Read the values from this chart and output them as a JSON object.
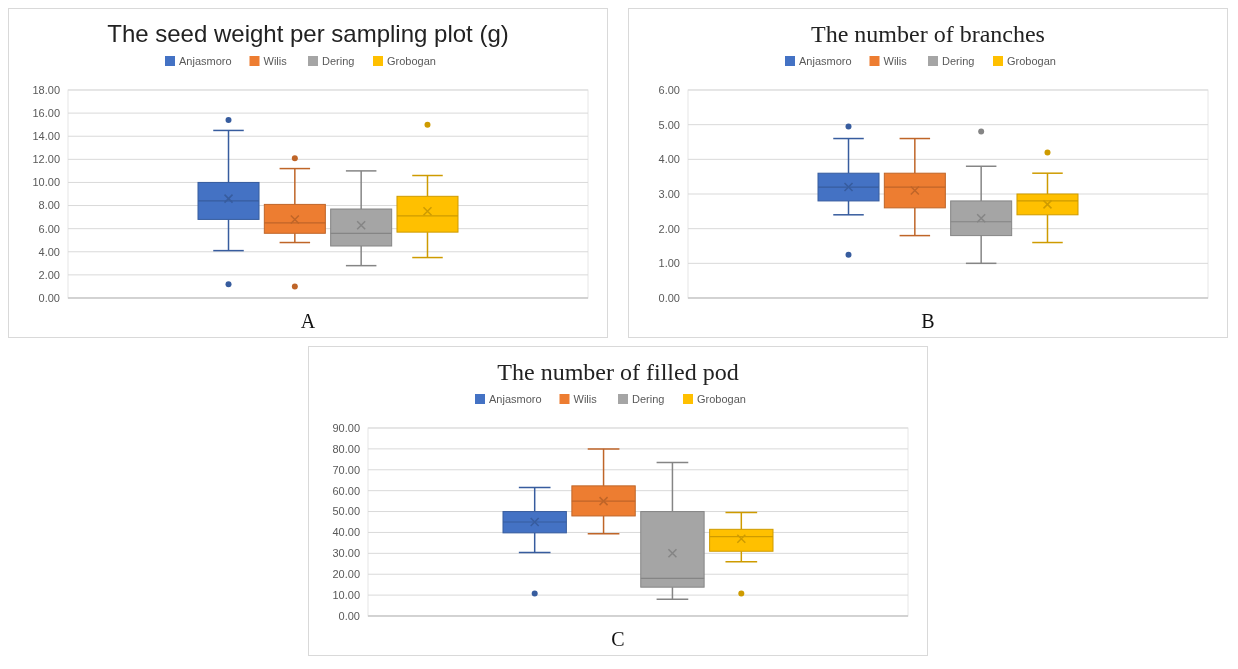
{
  "chart_data": [
    {
      "type": "box",
      "title": "The seed weight per sampling plot (g)",
      "categories": [
        null
      ],
      "legend": "top",
      "grid": "y",
      "ylim": [
        0,
        18
      ],
      "yticks": [
        {
          "value": 0,
          "label": "0.00"
        },
        {
          "value": 2,
          "label": "2.00"
        },
        {
          "value": 4,
          "label": "4.00"
        },
        {
          "value": 6,
          "label": "6.00"
        },
        {
          "value": 8,
          "label": "8.00"
        },
        {
          "value": 10,
          "label": "10.00"
        },
        {
          "value": 12,
          "label": "12.00"
        },
        {
          "value": 14,
          "label": "14.00"
        },
        {
          "value": 16,
          "label": "16.00"
        },
        {
          "value": 18,
          "label": "18.00"
        }
      ],
      "annotations": [
        "A"
      ],
      "series": [
        {
          "name": "Anjasmoro",
          "color": "#4472c4",
          "boxes": [
            {
              "low": 4.1,
              "q1": 6.8,
              "median": 8.4,
              "q3": 10.0,
              "high": 14.5,
              "mean": 8.6,
              "outliers": [
                15.4,
                1.2
              ]
            }
          ]
        },
        {
          "name": "Wilis",
          "color": "#ed7d31",
          "boxes": [
            {
              "low": 4.8,
              "q1": 5.6,
              "median": 6.5,
              "q3": 8.1,
              "high": 11.2,
              "mean": 6.8,
              "outliers": [
                12.1,
                1.0
              ]
            }
          ]
        },
        {
          "name": "Dering",
          "color": "#a5a5a5",
          "boxes": [
            {
              "low": 2.8,
              "q1": 4.5,
              "median": 5.6,
              "q3": 7.7,
              "high": 11.0,
              "mean": 6.3
            }
          ]
        },
        {
          "name": "Grobogan",
          "color": "#ffc000",
          "boxes": [
            {
              "low": 3.5,
              "q1": 5.7,
              "median": 7.1,
              "q3": 8.8,
              "high": 10.6,
              "mean": 7.5,
              "outliers": [
                15.0
              ]
            }
          ]
        }
      ]
    },
    {
      "type": "box",
      "title": "The number of branches",
      "categories": [
        null
      ],
      "legend": "top",
      "grid": "y",
      "ylim": [
        0,
        6
      ],
      "yticks": [
        {
          "value": 0,
          "label": "0.00"
        },
        {
          "value": 1,
          "label": "1.00"
        },
        {
          "value": 2,
          "label": "2.00"
        },
        {
          "value": 3,
          "label": "3.00"
        },
        {
          "value": 4,
          "label": "4.00"
        },
        {
          "value": 5,
          "label": "5.00"
        },
        {
          "value": 6,
          "label": "6.00"
        }
      ],
      "annotations": [
        "B"
      ],
      "series": [
        {
          "name": "Anjasmoro",
          "color": "#4472c4",
          "boxes": [
            {
              "low": 2.4,
              "q1": 2.8,
              "median": 3.2,
              "q3": 3.6,
              "high": 4.6,
              "mean": 3.2,
              "outliers": [
                4.95,
                1.25
              ]
            }
          ]
        },
        {
          "name": "Wilis",
          "color": "#ed7d31",
          "boxes": [
            {
              "low": 1.8,
              "q1": 2.6,
              "median": 3.2,
              "q3": 3.6,
              "high": 4.6,
              "mean": 3.1
            }
          ]
        },
        {
          "name": "Dering",
          "color": "#a5a5a5",
          "boxes": [
            {
              "low": 1.0,
              "q1": 1.8,
              "median": 2.2,
              "q3": 2.8,
              "high": 3.8,
              "mean": 2.3,
              "outliers": [
                4.8
              ]
            }
          ]
        },
        {
          "name": "Grobogan",
          "color": "#ffc000",
          "boxes": [
            {
              "low": 1.6,
              "q1": 2.4,
              "median": 2.8,
              "q3": 3.0,
              "high": 3.6,
              "mean": 2.7,
              "outliers": [
                4.2
              ]
            }
          ]
        }
      ]
    },
    {
      "type": "box",
      "title": "The number of filled pod",
      "categories": [
        null
      ],
      "legend": "top",
      "grid": "y",
      "ylim": [
        0,
        90
      ],
      "yticks": [
        {
          "value": 0,
          "label": "0.00"
        },
        {
          "value": 10,
          "label": "10.00"
        },
        {
          "value": 20,
          "label": "20.00"
        },
        {
          "value": 30,
          "label": "30.00"
        },
        {
          "value": 40,
          "label": "40.00"
        },
        {
          "value": 50,
          "label": "50.00"
        },
        {
          "value": 60,
          "label": "60.00"
        },
        {
          "value": 70,
          "label": "70.00"
        },
        {
          "value": 80,
          "label": "80.00"
        },
        {
          "value": 90,
          "label": "90.00"
        }
      ],
      "annotations": [
        "C"
      ],
      "series": [
        {
          "name": "Anjasmoro",
          "color": "#4472c4",
          "boxes": [
            {
              "low": 30.4,
              "q1": 39.8,
              "median": 45,
              "q3": 50,
              "high": 61.5,
              "mean": 45,
              "outliers": [
                10.8
              ]
            }
          ]
        },
        {
          "name": "Wilis",
          "color": "#ed7d31",
          "boxes": [
            {
              "low": 39.4,
              "q1": 47.9,
              "median": 55,
              "q3": 62.3,
              "high": 80,
              "mean": 55
            }
          ]
        },
        {
          "name": "Dering",
          "color": "#a5a5a5",
          "boxes": [
            {
              "low": 8,
              "q1": 13.8,
              "median": 18,
              "q3": 50,
              "high": 73.5,
              "mean": 30
            }
          ]
        },
        {
          "name": "Grobogan",
          "color": "#ffc000",
          "boxes": [
            {
              "low": 26,
              "q1": 31,
              "median": 38,
              "q3": 41.5,
              "high": 49.6,
              "mean": 37,
              "outliers": [
                10.8
              ]
            }
          ]
        }
      ]
    }
  ]
}
